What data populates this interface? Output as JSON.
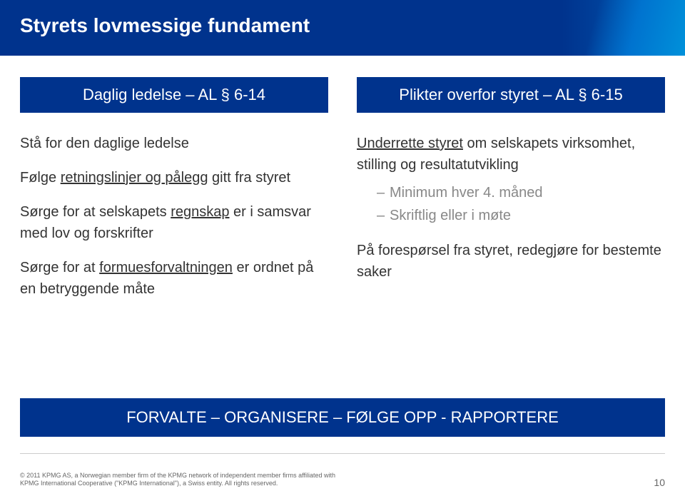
{
  "title": "Styrets lovmessige fundament",
  "columns": {
    "left": {
      "header": "Daglig ledelse – AL § 6-14",
      "p1": "Stå for den daglige ledelse",
      "p2a": "Følge ",
      "p2u": "retningslinjer og pålegg",
      "p2b": " gitt fra styret",
      "p3a": "Sørge for at selskapets ",
      "p3u": "regnskap",
      "p3b": " er i samsvar med lov og forskrifter",
      "p4a": "Sørge for at ",
      "p4u": "formuesforvaltningen",
      "p4b": " er ordnet på en betryggende måte"
    },
    "right": {
      "header": "Plikter overfor styret – AL § 6-15",
      "p1a": "Underrette styret",
      "p1b": " om selskapets virksomhet, stilling og resultatutvikling",
      "sub1": "Minimum hver 4. måned",
      "sub2": "Skriftlig eller i møte",
      "p2": "På forespørsel fra styret, redegjøre for bestemte saker"
    }
  },
  "bottomBar": "FORVALTE – ORGANISERE – FØLGE OPP - RAPPORTERE",
  "footer": {
    "line1": "© 2011 KPMG AS, a Norwegian member firm of the KPMG network of independent member firms affiliated with",
    "line2": "KPMG International Cooperative (\"KPMG International\"), a Swiss entity. All rights reserved."
  },
  "pageNumber": "10",
  "colors": {
    "brandBlue": "#00338d",
    "accentBlue": "#0091da",
    "bodyText": "#333333",
    "subText": "#888888",
    "footerText": "#666666"
  }
}
